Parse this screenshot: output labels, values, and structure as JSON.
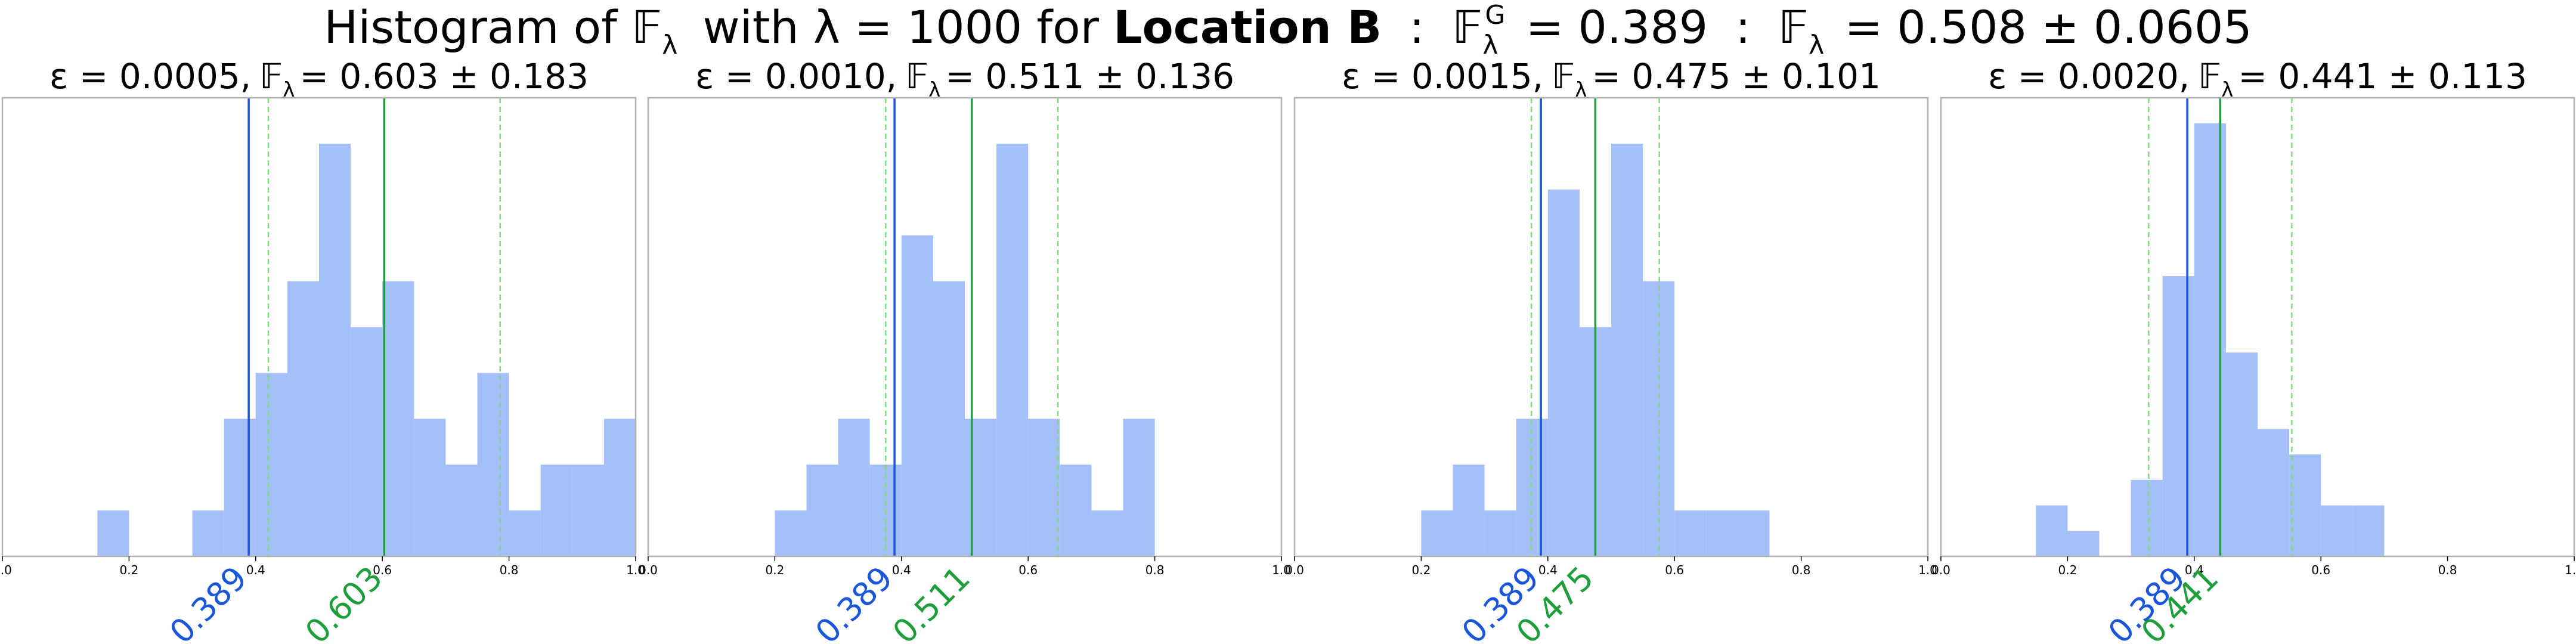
{
  "figure": {
    "title_prefix": "Histogram of",
    "title_lambda_part": "with λ = 1000 for",
    "title_location": "Location B",
    "title_sep1": ":",
    "title_ground_value": "= 0.389",
    "title_sep2": ":",
    "title_mean_value": "= 0.508 ± 0.0605",
    "colors": {
      "bars": "#a4bff9",
      "truth_line": "#1a56db",
      "mean_line": "#1e9e3a",
      "std_line": "#7fdc7f",
      "axis": "#b0b0b0"
    }
  },
  "chart_data": [
    {
      "type": "bar",
      "subtitle_eps": "ε = 0.0005,",
      "subtitle_value": "= 0.603 ± 0.183",
      "xlim": [
        0.0,
        1.0
      ],
      "xticks": [
        "0.0",
        "0.2",
        "0.4",
        "0.6",
        "0.8",
        "1.0"
      ],
      "grid": false,
      "bin_width": 0.05,
      "bins_start": [
        0.15,
        0.3,
        0.35,
        0.4,
        0.45,
        0.5,
        0.55,
        0.6,
        0.65,
        0.7,
        0.75,
        0.8,
        0.85,
        0.9,
        0.95
      ],
      "counts": [
        1,
        1,
        3,
        4,
        6,
        9,
        5,
        6,
        3,
        2,
        4,
        1,
        2,
        2,
        3
      ],
      "ymax": 10,
      "truth": 0.389,
      "truth_label": "0.389",
      "mean": 0.603,
      "mean_label": "0.603",
      "std": 0.183
    },
    {
      "type": "bar",
      "subtitle_eps": "ε = 0.0010,",
      "subtitle_value": "= 0.511 ± 0.136",
      "xlim": [
        0.0,
        1.0
      ],
      "xticks": [
        "0.0",
        "0.2",
        "0.4",
        "0.6",
        "0.8",
        "1.0"
      ],
      "grid": false,
      "bin_width": 0.05,
      "bins_start": [
        0.2,
        0.25,
        0.3,
        0.35,
        0.4,
        0.45,
        0.5,
        0.55,
        0.6,
        0.65,
        0.7,
        0.75
      ],
      "counts": [
        1,
        2,
        3,
        2,
        7,
        6,
        3,
        9,
        3,
        2,
        1,
        3
      ],
      "ymax": 10,
      "truth": 0.389,
      "truth_label": "0.389",
      "mean": 0.511,
      "mean_label": "0.511",
      "std": 0.136
    },
    {
      "type": "bar",
      "subtitle_eps": "ε = 0.0015,",
      "subtitle_value": "= 0.475 ± 0.101",
      "xlim": [
        0.0,
        1.0
      ],
      "xticks": [
        "0.0",
        "0.2",
        "0.4",
        "0.6",
        "0.8",
        "1.0"
      ],
      "grid": false,
      "bin_width": 0.05,
      "bins_start": [
        0.2,
        0.25,
        0.3,
        0.35,
        0.4,
        0.45,
        0.5,
        0.55,
        0.6,
        0.65,
        0.7
      ],
      "counts": [
        1,
        2,
        1,
        3,
        8,
        5,
        9,
        6,
        1,
        1,
        1
      ],
      "ymax": 10,
      "truth": 0.389,
      "truth_label": "0.389",
      "mean": 0.475,
      "mean_label": "0.475",
      "std": 0.101
    },
    {
      "type": "bar",
      "subtitle_eps": "ε = 0.0020,",
      "subtitle_value": "= 0.441 ± 0.113",
      "xlim": [
        0.0,
        1.0
      ],
      "xticks": [
        "0.0",
        "0.2",
        "0.4",
        "0.6",
        "0.8",
        "1.0"
      ],
      "grid": false,
      "bin_width": 0.05,
      "bins_start": [
        0.15,
        0.2,
        0.3,
        0.35,
        0.4,
        0.45,
        0.5,
        0.55,
        0.6,
        0.65
      ],
      "counts": [
        2,
        1,
        3,
        11,
        17,
        8,
        5,
        4,
        2,
        2
      ],
      "ymax": 18,
      "truth": 0.389,
      "truth_label": "0.389",
      "mean": 0.441,
      "mean_label": "0.441",
      "std": 0.113
    }
  ]
}
